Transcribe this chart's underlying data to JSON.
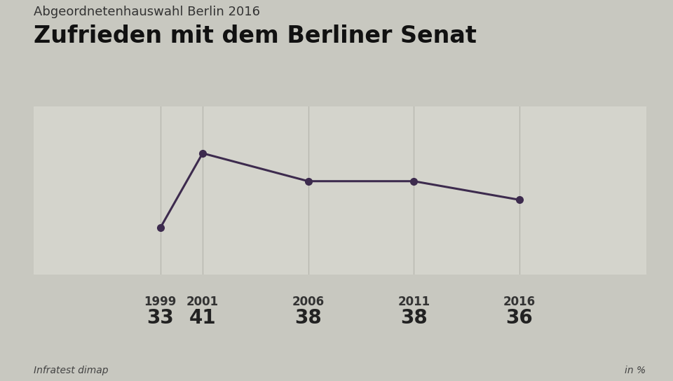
{
  "subtitle": "Abgeordnetenhauswahl Berlin 2016",
  "title": "Zufrieden mit dem Berliner Senat",
  "years": [
    1999,
    2001,
    2006,
    2011,
    2016
  ],
  "values": [
    33,
    41,
    38,
    38,
    36
  ],
  "line_color": "#3d2b4e",
  "marker_color": "#3d2b4e",
  "bg_color": "#c8c8c0",
  "plot_bg_color": "#d4d4cc",
  "table_bg_color": "#ffffff",
  "source_left": "Infratest dimap",
  "source_right": "in %",
  "ylim_min": 28,
  "ylim_max": 46,
  "subtitle_fontsize": 13,
  "title_fontsize": 24,
  "tick_fontsize": 12,
  "value_fontsize": 20,
  "source_fontsize": 10,
  "vline_color": "#b8b8b0",
  "hline_color": "#b0b0a8"
}
